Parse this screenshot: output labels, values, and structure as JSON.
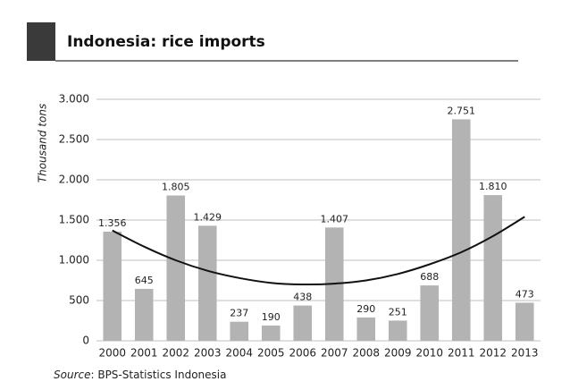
{
  "chart_data": {
    "type": "bar",
    "title": "Indonesia: rice imports",
    "y_label": "Thousand tons",
    "source_label": "Source",
    "source_text": ": BPS-Statistics Indonesia",
    "categories": [
      "2000",
      "2001",
      "2002",
      "2003",
      "2004",
      "2005",
      "2006",
      "2007",
      "2008",
      "2009",
      "2010",
      "2011",
      "2012",
      "2013"
    ],
    "values": [
      1356,
      645,
      1805,
      1429,
      237,
      190,
      438,
      1407,
      290,
      251,
      688,
      2751,
      1810,
      473
    ],
    "value_labels": [
      "1.356",
      "645",
      "1.805",
      "1.429",
      "237",
      "190",
      "438",
      "1.407",
      "290",
      "251",
      "688",
      "2.751",
      "1.810",
      "473"
    ],
    "color": "#b3b3b3",
    "trend_values": [
      1370,
      1170,
      1000,
      870,
      780,
      720,
      700,
      710,
      750,
      830,
      950,
      1100,
      1300,
      1540
    ],
    "trend_color": "#111111",
    "ylim": [
      0,
      3000
    ],
    "yticks": [
      0,
      500,
      {
        "value": 1000,
        "label": "1.000"
      },
      {
        "value": 1500,
        "label": "1.500"
      },
      {
        "value": 2000,
        "label": "2.000"
      },
      {
        "value": 2500,
        "label": "2.500"
      },
      {
        "value": 3000,
        "label": "3.000"
      }
    ],
    "grid": true
  }
}
